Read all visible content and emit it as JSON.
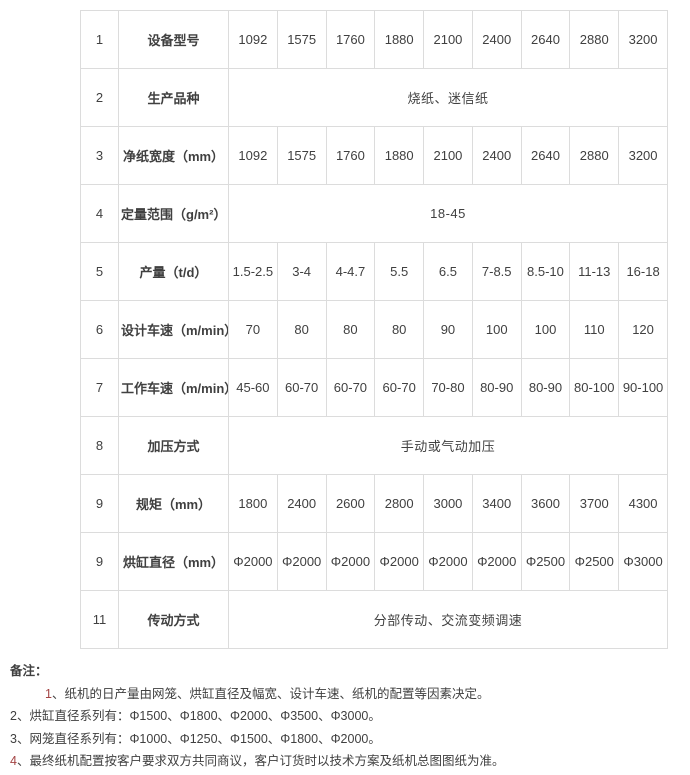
{
  "colors": {
    "text": "#404040",
    "border": "#dcdcdc",
    "note_number_accent": "#a34343",
    "background": "#ffffff"
  },
  "table": {
    "rows": [
      {
        "num": "1",
        "label": "设备型号",
        "cells": [
          "1092",
          "1575",
          "1760",
          "1880",
          "2100",
          "2400",
          "2640",
          "2880",
          "3200"
        ]
      },
      {
        "num": "2",
        "label": "生产品种",
        "merged": "烧纸、迷信纸"
      },
      {
        "num": "3",
        "label": "净纸宽度（mm）",
        "cells": [
          "1092",
          "1575",
          "1760",
          "1880",
          "2100",
          "2400",
          "2640",
          "2880",
          "3200"
        ]
      },
      {
        "num": "4",
        "label": "定量范围（g/m²）",
        "merged": "18-45"
      },
      {
        "num": "5",
        "label": "产量（t/d）",
        "cells": [
          "1.5-2.5",
          "3-4",
          "4-4.7",
          "5.5",
          "6.5",
          "7-8.5",
          "8.5-10",
          "11-13",
          "16-18"
        ]
      },
      {
        "num": "6",
        "label": "设计车速（m/min）",
        "cells": [
          "70",
          "80",
          "80",
          "80",
          "90",
          "100",
          "100",
          "110",
          "120"
        ]
      },
      {
        "num": "7",
        "label": "工作车速（m/min）",
        "cells": [
          "45-60",
          "60-70",
          "60-70",
          "60-70",
          "70-80",
          "80-90",
          "80-90",
          "80-100",
          "90-100"
        ]
      },
      {
        "num": "8",
        "label": "加压方式",
        "merged": "手动或气动加压"
      },
      {
        "num": "9",
        "label": "规矩（mm）",
        "cells": [
          "1800",
          "2400",
          "2600",
          "2800",
          "3000",
          "3400",
          "3600",
          "3700",
          "4300"
        ]
      },
      {
        "num": "9",
        "label": "烘缸直径（mm）",
        "cells": [
          "Φ2000",
          "Φ2000",
          "Φ2000",
          "Φ2000",
          "Φ2000",
          "Φ2000",
          "Φ2500",
          "Φ2500",
          "Φ3000"
        ]
      },
      {
        "num": "11",
        "label": "传动方式",
        "merged": "分部传动、交流变频调速"
      }
    ]
  },
  "notes": {
    "title": "备注：",
    "items": [
      {
        "num": "1",
        "text": "、纸机的日产量由网笼、烘缸直径及幅宽、设计车速、纸机的配置等因素决定。",
        "indent": true,
        "red": true
      },
      {
        "num": "2",
        "text": "、烘缸直径系列有：Φ1500、Φ1800、Φ2000、Φ3500、Φ3000。",
        "indent": false,
        "red": false
      },
      {
        "num": "3",
        "text": "、网笼直径系列有：Φ1000、Φ1250、Φ1500、Φ1800、Φ2000。",
        "indent": false,
        "red": false
      },
      {
        "num": "4",
        "text": "、最终纸机配置按客户要求双方共同商议，客户订货时以技术方案及纸机总图图纸为准。",
        "indent": false,
        "red": true
      }
    ]
  }
}
